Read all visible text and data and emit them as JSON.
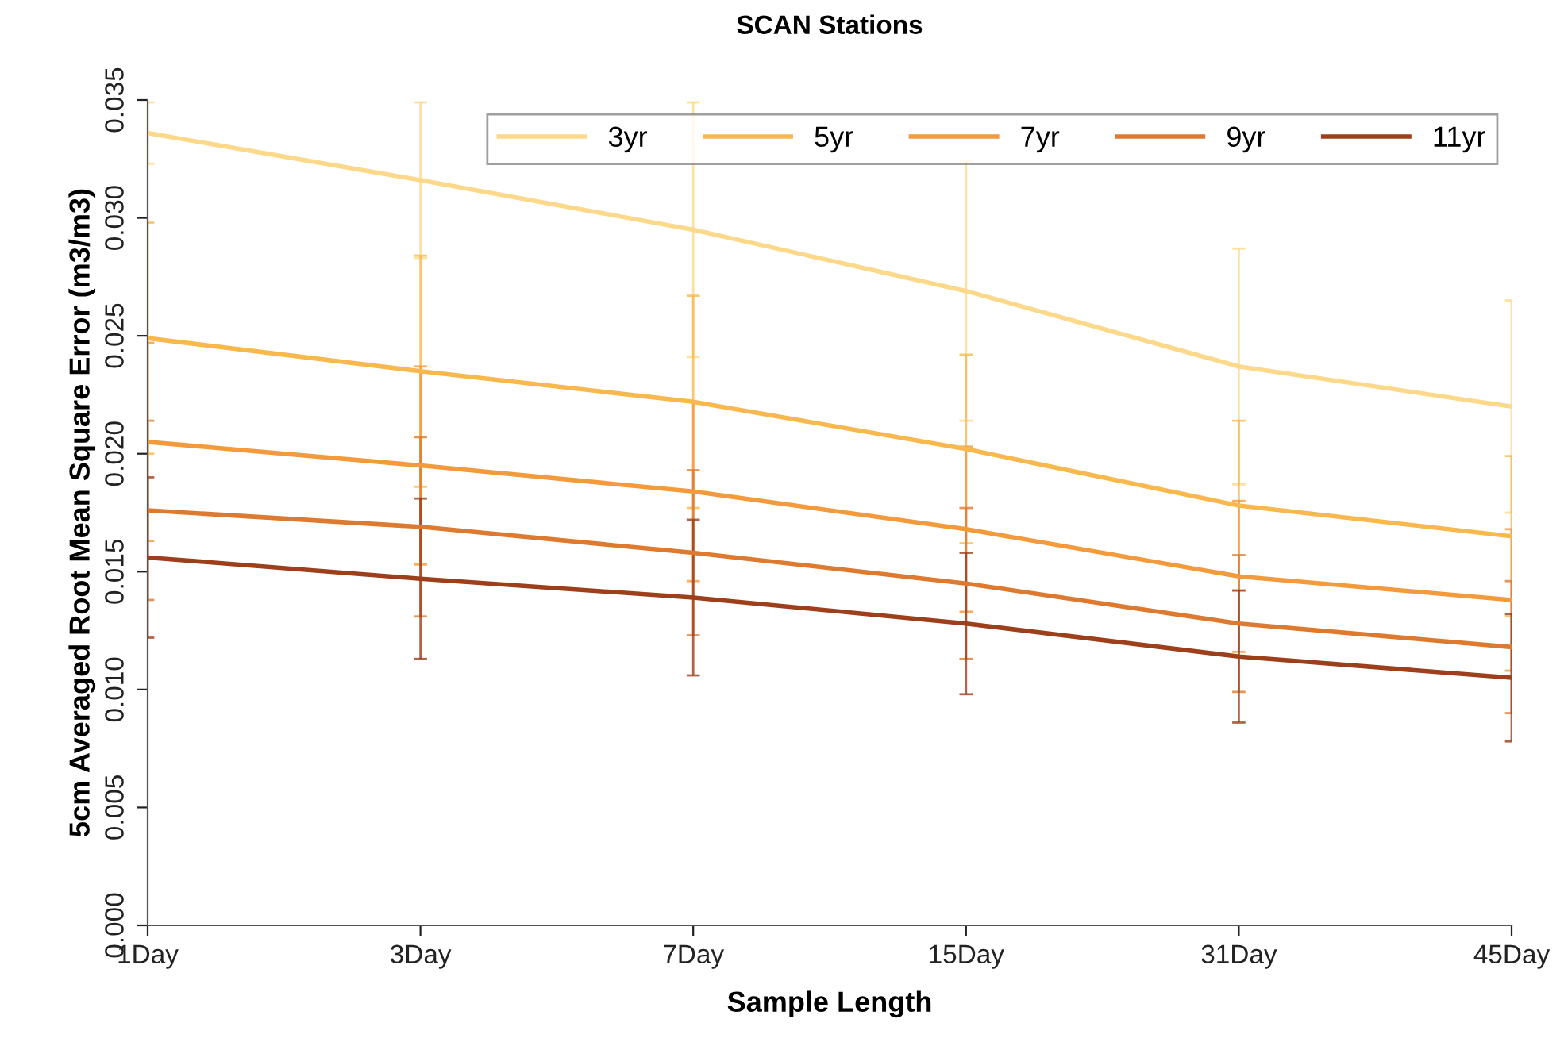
{
  "chart_data": {
    "type": "line",
    "title": "SCAN Stations",
    "xlabel": "Sample Length",
    "ylabel": "5cm Averaged Root Mean Square Error (m3/m3)",
    "categories": [
      "1Day",
      "3Day",
      "7Day",
      "15Day",
      "31Day",
      "45Day"
    ],
    "ylim": [
      0,
      0.035
    ],
    "yticks": [
      {
        "value": 0,
        "label": "0.000"
      },
      {
        "value": 0.005,
        "label": "0.005"
      },
      {
        "value": 0.01,
        "label": "0.010"
      },
      {
        "value": 0.015,
        "label": "0.015"
      },
      {
        "value": 0.02,
        "label": "0.020"
      },
      {
        "value": 0.025,
        "label": "0.025"
      },
      {
        "value": 0.03,
        "label": "0.030"
      },
      {
        "value": 0.035,
        "label": "0.035"
      }
    ],
    "grid": false,
    "legend": "top right",
    "marker": "none",
    "line_style": "solid",
    "series": [
      {
        "name": "3yr",
        "color": "#fcd98a",
        "values": [
          0.0336,
          0.0316,
          0.0295,
          0.0269,
          0.0237,
          0.022
        ],
        "errors": [
          0.0013,
          0.0033,
          0.0054,
          0.0055,
          0.005,
          0.0045
        ]
      },
      {
        "name": "5yr",
        "color": "#f8b84e",
        "values": [
          0.0249,
          0.0235,
          0.0222,
          0.0202,
          0.0178,
          0.0165
        ],
        "errors": [
          0.0049,
          0.0049,
          0.0045,
          0.004,
          0.0036,
          0.0034
        ]
      },
      {
        "name": "7yr",
        "color": "#f29a3c",
        "values": [
          0.0205,
          0.0195,
          0.0184,
          0.0168,
          0.0148,
          0.0138
        ],
        "errors": [
          0.0042,
          0.0042,
          0.0038,
          0.0035,
          0.0032,
          0.003
        ]
      },
      {
        "name": "9yr",
        "color": "#dd7a30",
        "values": [
          0.0176,
          0.0169,
          0.0158,
          0.0145,
          0.0128,
          0.0118
        ],
        "errors": [
          0.0038,
          0.0038,
          0.0035,
          0.0032,
          0.0029,
          0.0028
        ]
      },
      {
        "name": "11yr",
        "color": "#9c3f1a",
        "values": [
          0.0156,
          0.0147,
          0.0139,
          0.0128,
          0.0114,
          0.0105
        ],
        "errors": [
          0.0034,
          0.0034,
          0.0033,
          0.003,
          0.0028,
          0.0027
        ]
      }
    ]
  }
}
